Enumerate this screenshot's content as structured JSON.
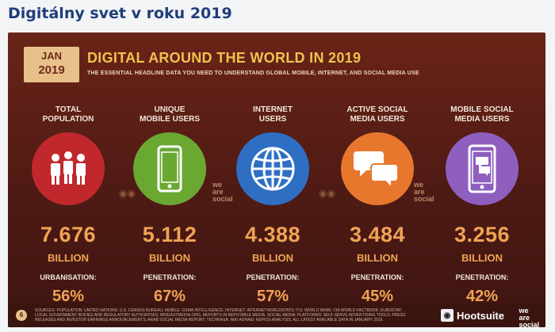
{
  "page_title": "Digitálny svet v roku 2019",
  "slide": {
    "badge_month": "JAN",
    "badge_year": "2019",
    "heading": "DIGITAL AROUND THE WORLD IN 2019",
    "subheading": "THE ESSENTIAL HEADLINE DATA YOU NEED TO UNDERSTAND GLOBAL MOBILE, INTERNET, AND SOCIAL MEDIA USE",
    "metrics": [
      {
        "label": "TOTAL\nPOPULATION",
        "value": "7.676",
        "unit": "BILLION",
        "sublabel": "URBANISATION:",
        "pct": "56%",
        "color": "#c0282d",
        "icon": "people-icon"
      },
      {
        "label": "UNIQUE\nMOBILE USERS",
        "value": "5.112",
        "unit": "BILLION",
        "sublabel": "PENETRATION:",
        "pct": "67%",
        "color": "#6aa832",
        "icon": "mobile-phone-icon"
      },
      {
        "label": "INTERNET\nUSERS",
        "value": "4.388",
        "unit": "BILLION",
        "sublabel": "PENETRATION:",
        "pct": "57%",
        "color": "#2e6fc4",
        "icon": "globe-icon"
      },
      {
        "label": "ACTIVE SOCIAL\nMEDIA USERS",
        "value": "3.484",
        "unit": "BILLION",
        "sublabel": "PENETRATION:",
        "pct": "45%",
        "color": "#e8772e",
        "icon": "chat-bubbles-icon"
      },
      {
        "label": "MOBILE SOCIAL\nMEDIA USERS",
        "value": "3.256",
        "unit": "BILLION",
        "sublabel": "PENETRATION:",
        "pct": "42%",
        "color": "#8e5fbf",
        "icon": "mobile-chat-icon"
      }
    ],
    "page_number": "6",
    "sources": "SOURCES: POPULATION: UNITED NATIONS; U.S. CENSUS BUREAU; MOBILE: GSMA INTELLIGENCE; INTERNET: INTERNETWORLDSTATS; ITU; WORLD BANK; CIA WORLD FACTBOOK; EUROSTAT; LOCAL GOVERNMENT BODIES AND REGULATORY AUTHORITIES; MIDEASTMEDIA.ORG; REPORTS IN REPUTABLE MEDIA. SOCIAL MEDIA: PLATFORMS' SELF-SERVE ADVERTISING TOOLS; PRESS RELEASES AND INVESTOR EARNINGS ANNOUNCEMENTS; ARAB SOCIAL MEDIA REPORT; TECHRASA; NIKI AGHAEI; KEPIOS ANALYSIS. ALL LATEST AVAILABLE DATA IN JANUARY 2019.",
    "brand_name": "Hootsuite",
    "watermark": "we\nare\nsocial"
  }
}
